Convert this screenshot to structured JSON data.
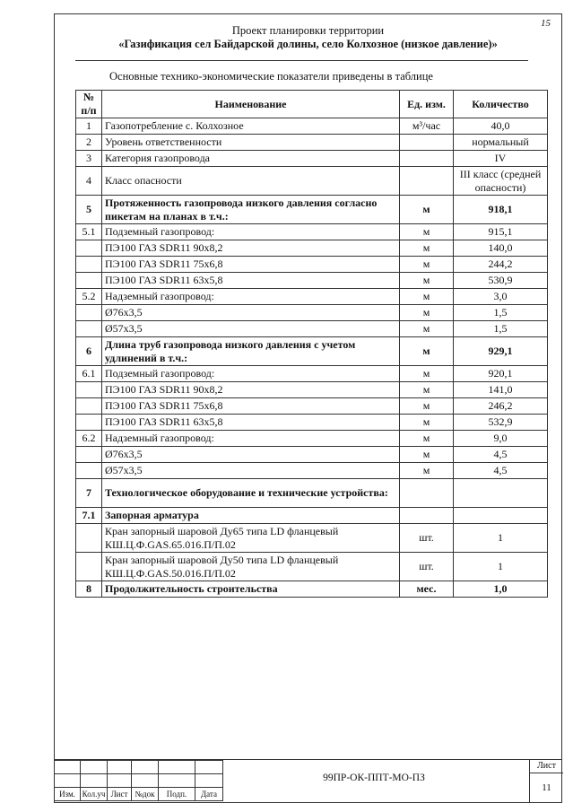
{
  "page_number": "15",
  "header": {
    "line1": "Проект планировки территории",
    "line2": "«Газификация сел Байдарской долины, село Колхозное (низкое давление)»"
  },
  "intro": "Основные технико-экономические показатели приведены в таблице",
  "table": {
    "headers": {
      "num": "№ п/п",
      "name": "Наименование",
      "unit": "Ед. изм.",
      "qty": "Количество"
    },
    "rows": [
      {
        "num": "1",
        "name": "Газопотребление с. Колхозное",
        "unit": "м³/час",
        "qty": "40,0",
        "bold": false
      },
      {
        "num": "2",
        "name": "Уровень ответственности",
        "unit": "",
        "qty": "нормальный",
        "bold": false
      },
      {
        "num": "3",
        "name": "Категория газопровода",
        "unit": "",
        "qty": "IV",
        "bold": false
      },
      {
        "num": "4",
        "name": "Класс опасности",
        "unit": "",
        "qty": "III класс (средней опасности)",
        "bold": false
      },
      {
        "num": "5",
        "name": "Протяженность газопровода низкого давления согласно пикетам на планах в т.ч.:",
        "unit": "м",
        "qty": "918,1",
        "bold": true
      },
      {
        "num": "5.1",
        "name": "Подземный газопровод:",
        "unit": "м",
        "qty": "915,1",
        "bold": false
      },
      {
        "num": "",
        "name": "ПЭ100 ГАЗ SDR11 90х8,2",
        "unit": "м",
        "qty": "140,0",
        "bold": false
      },
      {
        "num": "",
        "name": "ПЭ100 ГАЗ SDR11 75х6,8",
        "unit": "м",
        "qty": "244,2",
        "bold": false
      },
      {
        "num": "",
        "name": "ПЭ100 ГАЗ SDR11 63х5,8",
        "unit": "м",
        "qty": "530,9",
        "bold": false
      },
      {
        "num": "5.2",
        "name": "Надземный газопровод:",
        "unit": "м",
        "qty": "3,0",
        "bold": false
      },
      {
        "num": "",
        "name": "Ø76х3,5",
        "unit": "м",
        "qty": "1,5",
        "bold": false
      },
      {
        "num": "",
        "name": "Ø57х3,5",
        "unit": "м",
        "qty": "1,5",
        "bold": false
      },
      {
        "num": "6",
        "name": "Длина труб газопровода низкого давления с учетом удлинений в т.ч.:",
        "unit": "м",
        "qty": "929,1",
        "bold": true
      },
      {
        "num": "6.1",
        "name": "Подземный газопровод:",
        "unit": "м",
        "qty": "920,1",
        "bold": false
      },
      {
        "num": "",
        "name": "ПЭ100 ГАЗ SDR11 90х8,2",
        "unit": "м",
        "qty": "141,0",
        "bold": false
      },
      {
        "num": "",
        "name": "ПЭ100 ГАЗ SDR11 75х6,8",
        "unit": "м",
        "qty": "246,2",
        "bold": false
      },
      {
        "num": "",
        "name": "ПЭ100 ГАЗ SDR11 63х5,8",
        "unit": "м",
        "qty": "532,9",
        "bold": false
      },
      {
        "num": "6.2",
        "name": "Надземный газопровод:",
        "unit": "м",
        "qty": "9,0",
        "bold": false
      },
      {
        "num": "",
        "name": "Ø76х3,5",
        "unit": "м",
        "qty": "4,5",
        "bold": false
      },
      {
        "num": "",
        "name": "Ø57х3,5",
        "unit": "м",
        "qty": "4,5",
        "bold": false
      },
      {
        "num": "7",
        "name": "Технологическое оборудование и технические устройства:",
        "unit": "",
        "qty": "",
        "bold": true
      },
      {
        "num": "7.1",
        "name": "Запорная арматура",
        "unit": "",
        "qty": "",
        "bold": true
      },
      {
        "num": "",
        "name": "Кран запорный шаровой Ду65 типа LD фланцевый КШ.Ц.Ф.GAS.65.016.П/П.02",
        "unit": "шт.",
        "qty": "1",
        "bold": false
      },
      {
        "num": "",
        "name": "Кран запорный шаровой Ду50 типа LD фланцевый КШ.Ц.Ф.GAS.50.016.П/П.02",
        "unit": "шт.",
        "qty": "1",
        "bold": false
      },
      {
        "num": "8",
        "name": "Продолжительность строительства",
        "unit": "мес.",
        "qty": "1,0",
        "bold": true
      }
    ]
  },
  "stamp": {
    "columns": [
      "Изм.",
      "Кол.уч",
      "Лист",
      "№док",
      "Подп.",
      "Дата"
    ],
    "document_code": "99ПР-ОК-ППТ-МО-ПЗ",
    "sheet_label": "Лист",
    "sheet_number": "11"
  }
}
